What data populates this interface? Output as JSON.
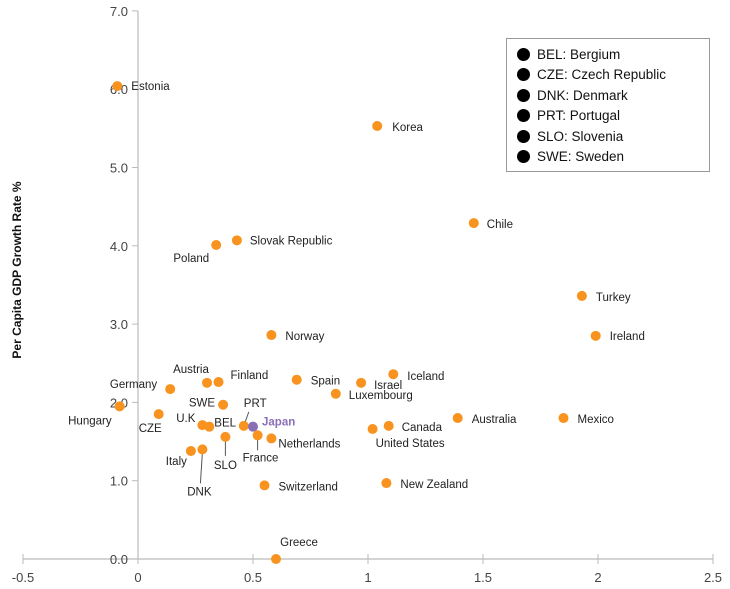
{
  "chart_data": {
    "type": "scatter",
    "title": "",
    "xlabel": "",
    "ylabel": "Per Capita GDP Growth Rate %",
    "xlim": [
      -0.5,
      2.5
    ],
    "ylim": [
      0,
      7
    ],
    "x_ticks": [
      "-0.5",
      "0",
      "0.5",
      "1",
      "1.5",
      "2",
      "2.5"
    ],
    "y_ticks": [
      "0.0",
      "1.0",
      "2.0",
      "3.0",
      "4.0",
      "5.0",
      "6.0",
      "7.0"
    ],
    "grid": false,
    "colors": {
      "point": "#f7931e",
      "highlight": "#8a6fb5",
      "axis": "#bbbbbb"
    },
    "points": [
      {
        "label": "Estonia",
        "x": -0.09,
        "y": 6.04
      },
      {
        "label": "Korea",
        "x": 1.04,
        "y": 5.53
      },
      {
        "label": "Chile",
        "x": 1.46,
        "y": 4.29
      },
      {
        "label": "Slovak Republic",
        "x": 0.43,
        "y": 4.07
      },
      {
        "label": "Poland",
        "x": 0.34,
        "y": 4.01
      },
      {
        "label": "Turkey",
        "x": 1.93,
        "y": 3.36
      },
      {
        "label": "Ireland",
        "x": 1.99,
        "y": 2.85
      },
      {
        "label": "Norway",
        "x": 0.58,
        "y": 2.86
      },
      {
        "label": "Iceland",
        "x": 1.11,
        "y": 2.36
      },
      {
        "label": "Spain",
        "x": 0.69,
        "y": 2.29
      },
      {
        "label": "Israel",
        "x": 0.97,
        "y": 2.25
      },
      {
        "label": "Luxembourg",
        "x": 0.86,
        "y": 2.11
      },
      {
        "label": "Austria",
        "x": 0.3,
        "y": 2.25
      },
      {
        "label": "Finland",
        "x": 0.35,
        "y": 2.26
      },
      {
        "label": "Germany",
        "x": 0.14,
        "y": 2.17
      },
      {
        "label": "SWE",
        "x": 0.37,
        "y": 1.97
      },
      {
        "label": "Hungary",
        "x": -0.08,
        "y": 1.95
      },
      {
        "label": "CZE",
        "x": 0.09,
        "y": 1.85
      },
      {
        "label": "U.K",
        "x": 0.28,
        "y": 1.71
      },
      {
        "label": "BEL",
        "x": 0.31,
        "y": 1.69
      },
      {
        "label": "PRT",
        "x": 0.46,
        "y": 1.7
      },
      {
        "label": "Japan",
        "x": 0.5,
        "y": 1.69,
        "highlight": true
      },
      {
        "label": "France",
        "x": 0.52,
        "y": 1.58
      },
      {
        "label": "Netherlands",
        "x": 0.58,
        "y": 1.54
      },
      {
        "label": "SLO",
        "x": 0.38,
        "y": 1.56
      },
      {
        "label": "Italy",
        "x": 0.23,
        "y": 1.38
      },
      {
        "label": "DNK",
        "x": 0.28,
        "y": 1.4
      },
      {
        "label": "Switzerland",
        "x": 0.55,
        "y": 0.94
      },
      {
        "label": "Greece",
        "x": 0.6,
        "y": 0.0
      },
      {
        "label": "Australia",
        "x": 1.39,
        "y": 1.8
      },
      {
        "label": "Mexico",
        "x": 1.85,
        "y": 1.8
      },
      {
        "label": "Canada",
        "x": 1.09,
        "y": 1.7
      },
      {
        "label": "United States",
        "x": 1.02,
        "y": 1.66
      },
      {
        "label": "New Zealand",
        "x": 1.08,
        "y": 0.97
      }
    ],
    "legend": {
      "placement": "top-right",
      "items": [
        "BEL: Bergium",
        "CZE: Czech Republic",
        "DNK: Denmark",
        "PRT: Portugal",
        "SLO: Slovenia",
        "SWE: Sweden"
      ]
    }
  }
}
